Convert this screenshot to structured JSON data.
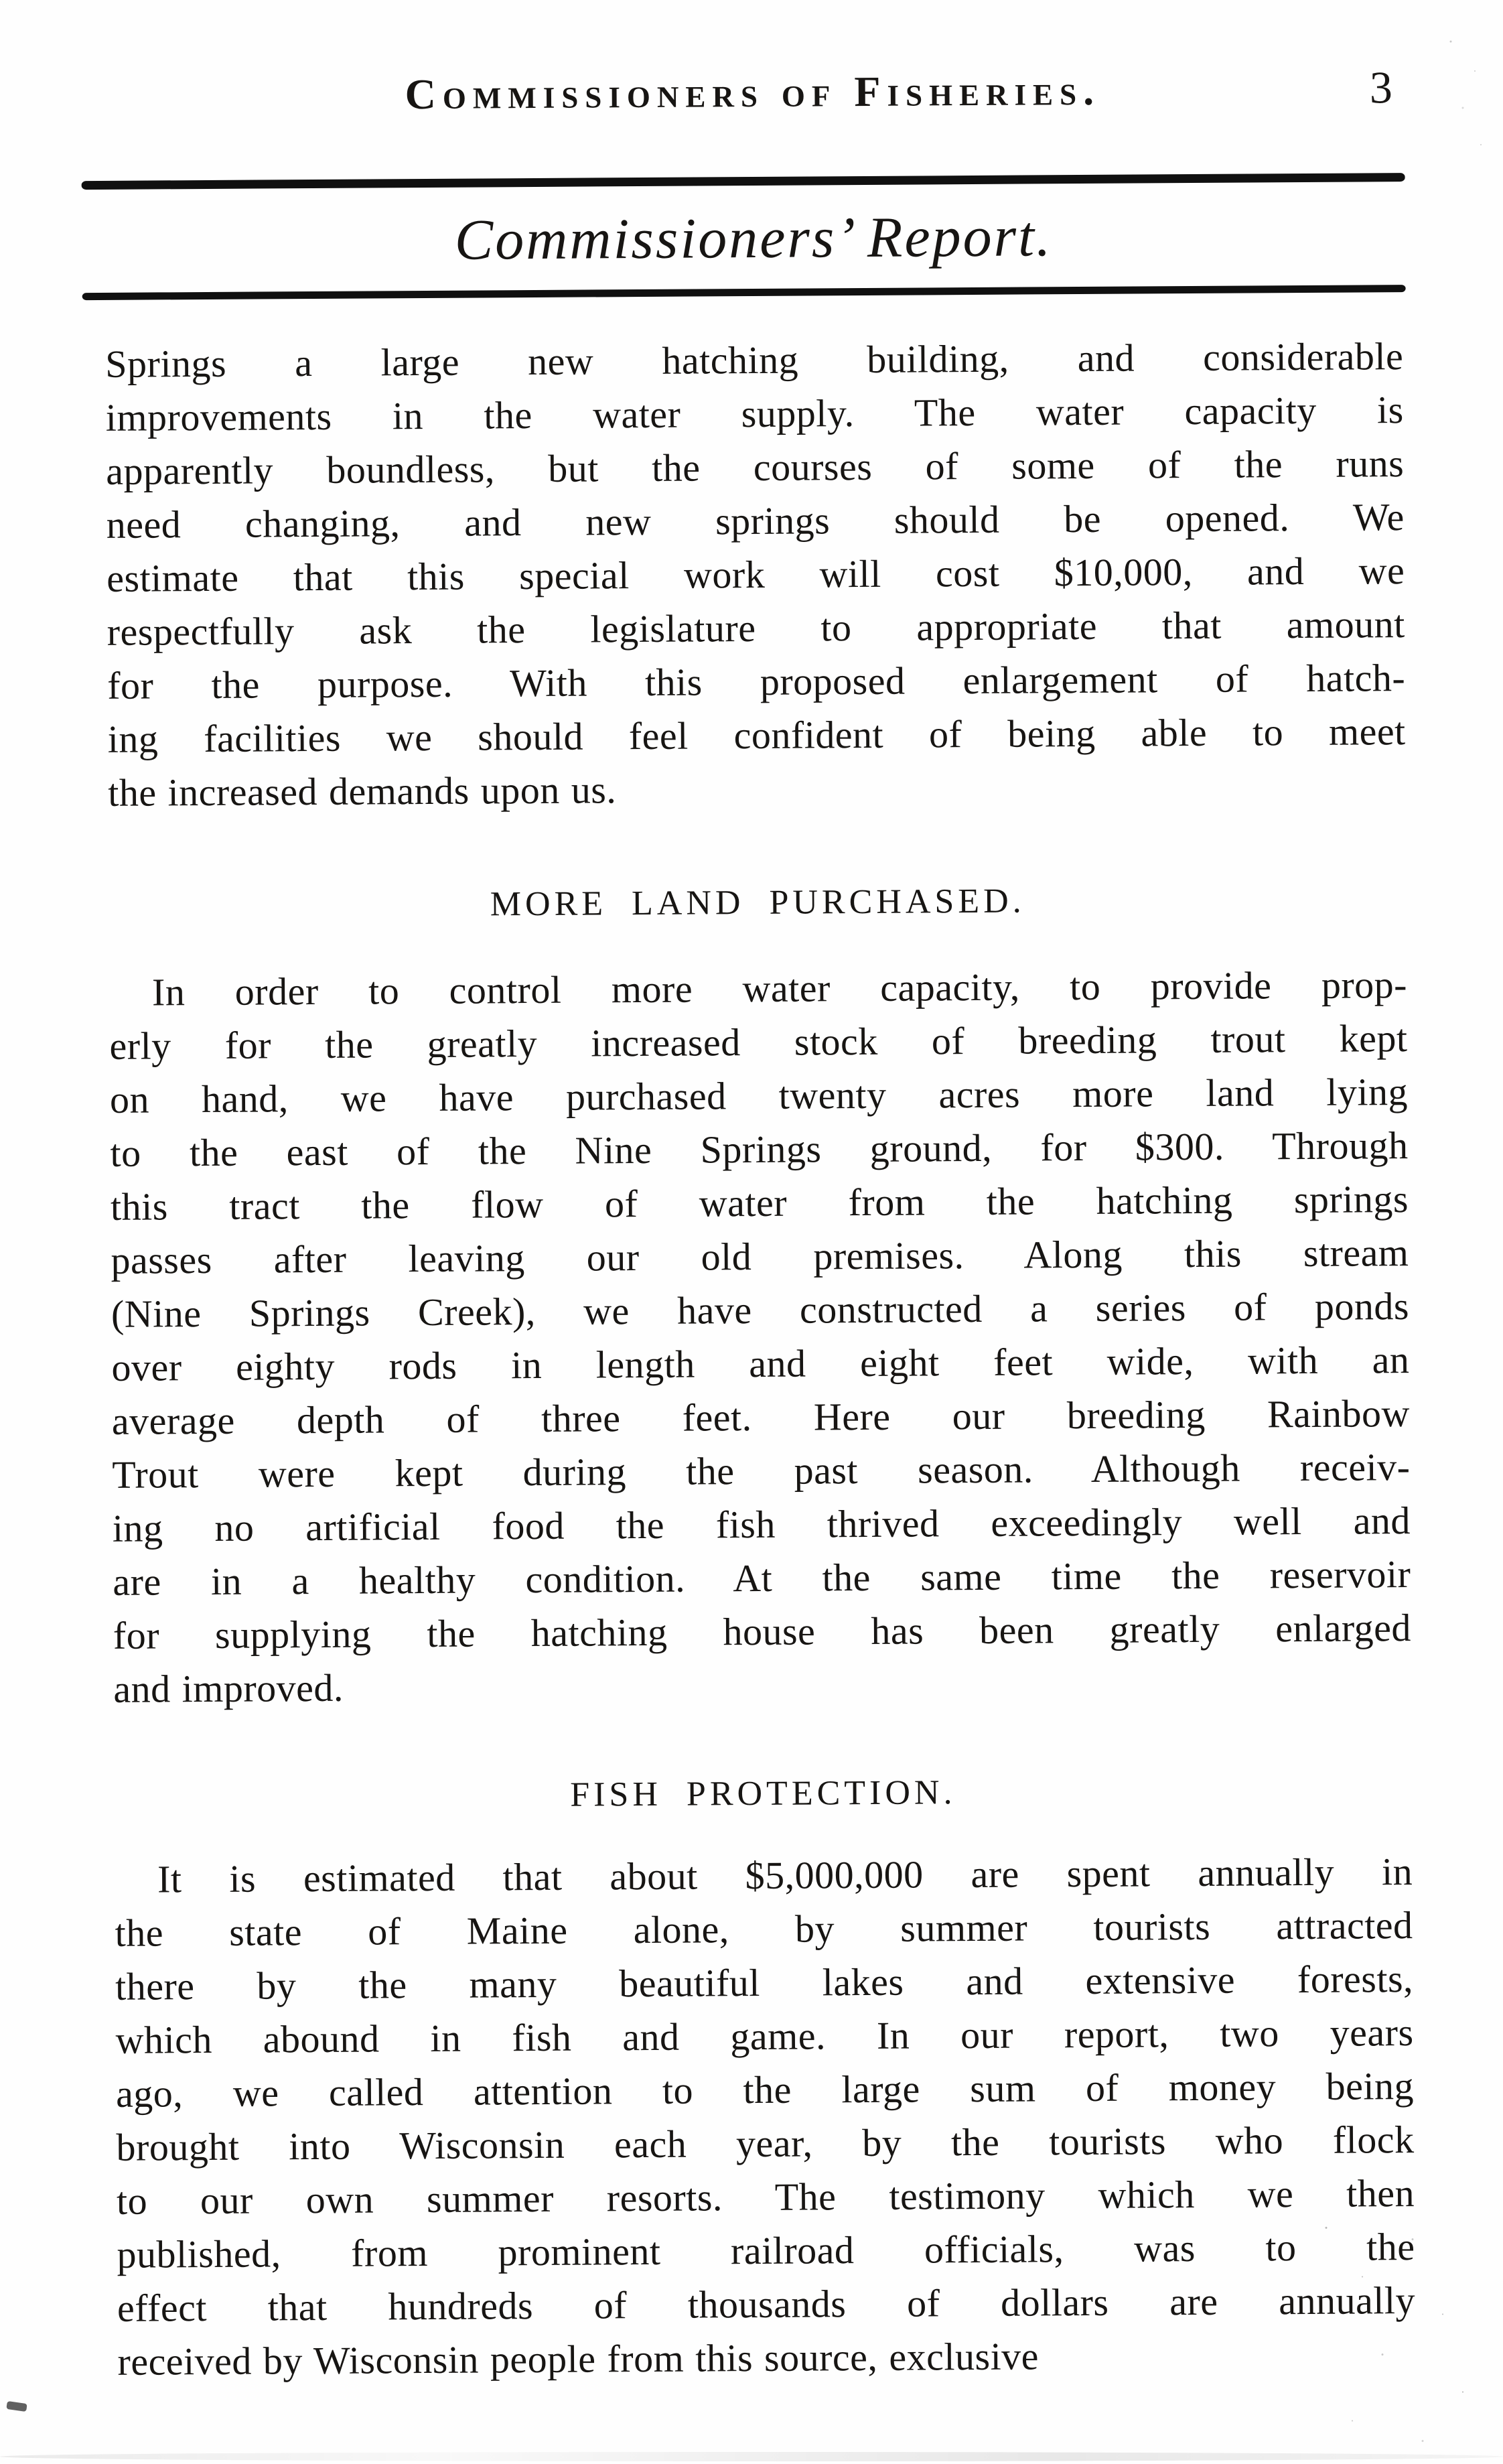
{
  "colors": {
    "ink": "#171513",
    "paper": "#fefefe"
  },
  "header": {
    "running_title": "Commissioners of Fisheries.",
    "page_number": "3"
  },
  "title": "Commissioners’ Report.",
  "sections": [
    {
      "paragraph_lines": [
        "Springs a large new hatching building, and considerable",
        "improvements in the water supply.  The water capacity is",
        "apparently boundless, but the courses of some of the runs",
        "need changing, and new springs should be opened.  We",
        "estimate that this special work will cost $10,000, and we",
        "respectfully ask the legislature to appropriate that amount",
        "for the purpose.  With this proposed enlargement of hatch-",
        "ing facilities we should feel confident of being able to meet",
        "the increased demands upon us."
      ]
    },
    {
      "heading": "MORE LAND PURCHASED.",
      "paragraph_lines": [
        "In order to control more water capacity, to provide prop-",
        "erly for the greatly increased stock of breeding trout kept",
        "on hand, we have purchased twenty acres more land lying",
        "to the east of the Nine Springs ground, for $300.  Through",
        "this tract the flow of water from the hatching springs",
        "passes after leaving our old premises.  Along this stream",
        "(Nine Springs Creek), we have constructed a series of ponds",
        "over eighty rods in length and eight feet wide, with an",
        "average depth of three feet.  Here our breeding Rainbow",
        "Trout were kept during the past season.  Although receiv-",
        "ing no artificial food the fish thrived exceedingly well and",
        "are in a healthy condition.  At the same time the reservoir",
        "for supplying the hatching house has been greatly enlarged",
        "and improved."
      ]
    },
    {
      "heading": "FISH PROTECTION.",
      "paragraph_lines": [
        "It is estimated that about $5,000,000 are spent annually in",
        "the state of Maine alone, by summer tourists attracted",
        "there by the many beautiful lakes and extensive forests,",
        "which abound in fish and game.  In our report, two years",
        "ago, we called attention to the large sum of money being",
        "brought into Wisconsin each year, by the tourists who flock",
        "to our own summer resorts.  The testimony which we then",
        "published, from prominent railroad officials, was to the",
        "effect that hundreds of thousands of dollars are annually",
        "received by Wisconsin people from this source, exclusive"
      ]
    }
  ]
}
